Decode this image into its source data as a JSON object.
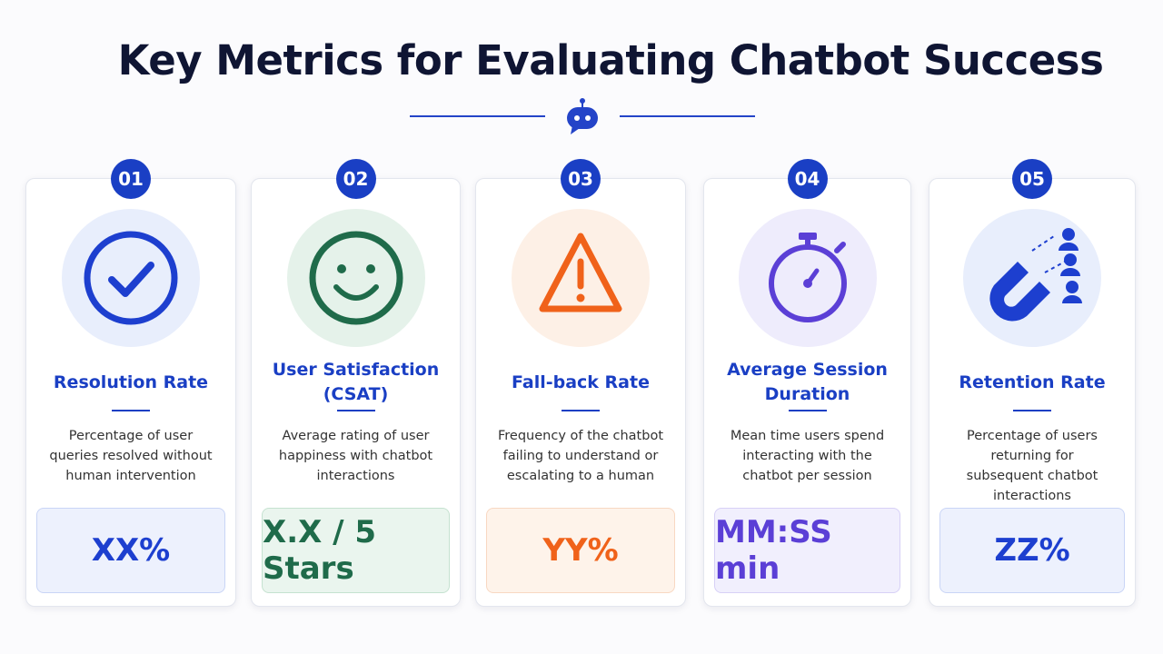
{
  "title": "Key Metrics for Evaluating Chatbot Success",
  "cards": [
    {
      "number": "01",
      "title": "Resolution Rate",
      "description": "Percentage of user queries resolved without human intervention",
      "value": "XX%"
    },
    {
      "number": "02",
      "title": "User Satisfaction (CSAT)",
      "description": "Average rating of user happiness with chatbot interactions",
      "value": "X.X / 5 Stars"
    },
    {
      "number": "03",
      "title": "Fall-back Rate",
      "description": "Frequency of the chatbot failing to understand or escalating to a human",
      "value": "YY%"
    },
    {
      "number": "04",
      "title": "Average Session Duration",
      "description": "Mean time users spend interacting with the chatbot per session",
      "value": "MM:SS min"
    },
    {
      "number": "05",
      "title": "Retention Rate",
      "description": "Percentage of users returning for subsequent chatbot interactions",
      "value": "ZZ%"
    }
  ]
}
